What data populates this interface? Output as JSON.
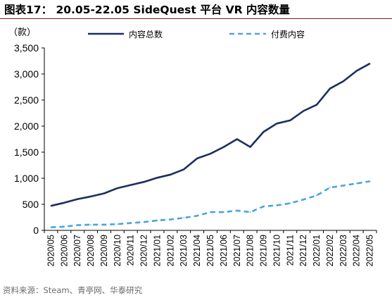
{
  "header": {
    "title": "图表17：  20.05-22.05 SideQuest 平台 VR 内容数量"
  },
  "footer": {
    "source": "资料来源：Steam、青亭网、华泰研究"
  },
  "chart_data": {
    "type": "line",
    "title": "20.05-22.05 SideQuest 平台 VR 内容数量",
    "ylabel": "（款）",
    "ylim": [
      0,
      3500
    ],
    "yticks": [
      "0",
      "500",
      "1,000",
      "1,500",
      "2,000",
      "2,500",
      "3,000",
      "3,500"
    ],
    "ytick_values": [
      0,
      500,
      1000,
      1500,
      2000,
      2500,
      3000,
      3500
    ],
    "legend_position": "top",
    "grid": false,
    "categories": [
      "2020/05",
      "2020/06",
      "2020/07",
      "2020/08",
      "2020/09",
      "2020/10",
      "2020/11",
      "2020/12",
      "2021/01",
      "2021/02",
      "2021/03",
      "2021/04",
      "2021/05",
      "2021/06",
      "2021/07",
      "2021/08",
      "2021/09",
      "2021/10",
      "2021/11",
      "2021/12",
      "2022/01",
      "2022/02",
      "2022/03",
      "2022/04",
      "2022/05"
    ],
    "series": [
      {
        "name": "内容总数",
        "color": "#1b2f5e",
        "style": "solid",
        "values": [
          470,
          530,
          600,
          650,
          710,
          810,
          870,
          930,
          1010,
          1070,
          1170,
          1380,
          1470,
          1600,
          1750,
          1600,
          1890,
          2050,
          2110,
          2290,
          2410,
          2720,
          2860,
          3060,
          3200
        ]
      },
      {
        "name": "付费内容",
        "color": "#4aa3df",
        "style": "dashed",
        "values": [
          60,
          70,
          100,
          110,
          110,
          120,
          140,
          160,
          190,
          210,
          240,
          280,
          350,
          350,
          380,
          350,
          460,
          480,
          520,
          590,
          670,
          820,
          860,
          900,
          940
        ]
      }
    ]
  }
}
